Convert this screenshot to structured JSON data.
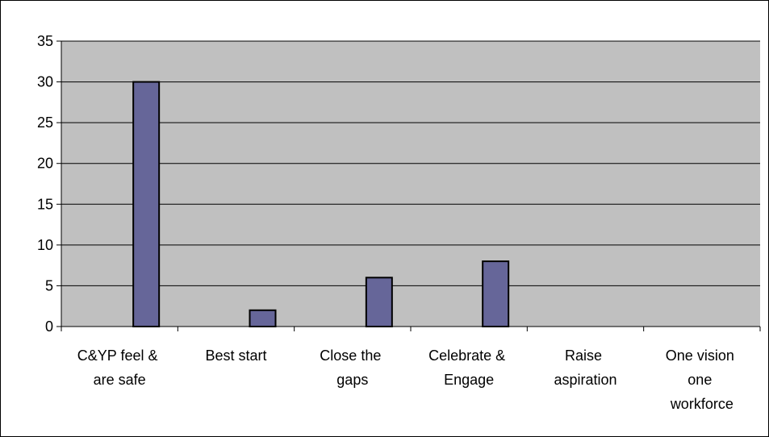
{
  "chart_data": {
    "type": "bar",
    "categories": [
      "C&YP feel & are safe",
      "Best start",
      "Close the gaps",
      "Celebrate & Engage",
      "Raise aspiration",
      "One vision one workforce"
    ],
    "values": [
      30,
      2,
      6,
      8,
      0,
      0
    ],
    "color": "#666699",
    "ylim": [
      0,
      35
    ],
    "yticks": [
      0,
      5,
      10,
      15,
      20,
      25,
      30,
      35
    ],
    "grid": true
  }
}
